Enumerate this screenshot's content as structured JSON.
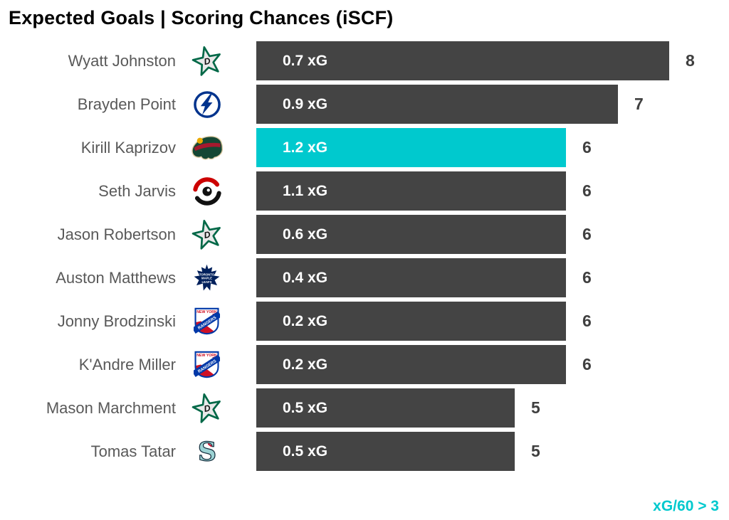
{
  "title": "Expected Goals | Scoring Chances (iSCF)",
  "colors": {
    "bar_default": "#444444",
    "bar_highlight": "#00C9CE",
    "bar_label_text": "#ffffff",
    "player_name_text": "#595959",
    "count_text": "#3f3f3f",
    "title_text": "#000000",
    "annotation_text": "#00C9CE"
  },
  "chart_data": {
    "type": "bar",
    "orientation": "horizontal",
    "title": "Expected Goals | Scoring Chances (iSCF)",
    "value_axis": "scoring chances (iSCF)",
    "value_axis_max": 8,
    "bar_label_unit": "xG",
    "annotation": "xG/60 > 3",
    "annotation_position": "bottom-right",
    "grid": false,
    "players": [
      {
        "name": "Wyatt Johnston",
        "team": "DAL",
        "team_name": "Dallas Stars",
        "logo_icon": "dallas-stars-logo-icon",
        "xg": 0.7,
        "xg_label": "0.7 xG",
        "chances": 8,
        "highlight": false
      },
      {
        "name": "Brayden Point",
        "team": "TBL",
        "team_name": "Tampa Bay Lightning",
        "logo_icon": "tampa-bay-lightning-logo-icon",
        "xg": 0.9,
        "xg_label": "0.9 xG",
        "chances": 7,
        "highlight": false
      },
      {
        "name": "Kirill Kaprizov",
        "team": "MIN",
        "team_name": "Minnesota Wild",
        "logo_icon": "minnesota-wild-logo-icon",
        "xg": 1.2,
        "xg_label": "1.2 xG",
        "chances": 6,
        "highlight": true
      },
      {
        "name": "Seth Jarvis",
        "team": "CAR",
        "team_name": "Carolina Hurricanes",
        "logo_icon": "carolina-hurricanes-logo-icon",
        "xg": 1.1,
        "xg_label": "1.1 xG",
        "chances": 6,
        "highlight": false
      },
      {
        "name": "Jason Robertson",
        "team": "DAL",
        "team_name": "Dallas Stars",
        "logo_icon": "dallas-stars-logo-icon",
        "xg": 0.6,
        "xg_label": "0.6 xG",
        "chances": 6,
        "highlight": false
      },
      {
        "name": "Auston Matthews",
        "team": "TOR",
        "team_name": "Toronto Maple Leafs",
        "logo_icon": "toronto-maple-leafs-logo-icon",
        "xg": 0.4,
        "xg_label": "0.4 xG",
        "chances": 6,
        "highlight": false
      },
      {
        "name": "Jonny Brodzinski",
        "team": "NYR",
        "team_name": "New York Rangers",
        "logo_icon": "new-york-rangers-logo-icon",
        "xg": 0.2,
        "xg_label": "0.2 xG",
        "chances": 6,
        "highlight": false
      },
      {
        "name": "K'Andre Miller",
        "team": "NYR",
        "team_name": "New York Rangers",
        "logo_icon": "new-york-rangers-logo-icon",
        "xg": 0.2,
        "xg_label": "0.2 xG",
        "chances": 6,
        "highlight": false
      },
      {
        "name": "Mason Marchment",
        "team": "DAL",
        "team_name": "Dallas Stars",
        "logo_icon": "dallas-stars-logo-icon",
        "xg": 0.5,
        "xg_label": "0.5 xG",
        "chances": 5,
        "highlight": false
      },
      {
        "name": "Tomas Tatar",
        "team": "SEA",
        "team_name": "Seattle Kraken",
        "logo_icon": "seattle-kraken-logo-icon",
        "xg": 0.5,
        "xg_label": "0.5 xG",
        "chances": 5,
        "highlight": false
      }
    ]
  }
}
